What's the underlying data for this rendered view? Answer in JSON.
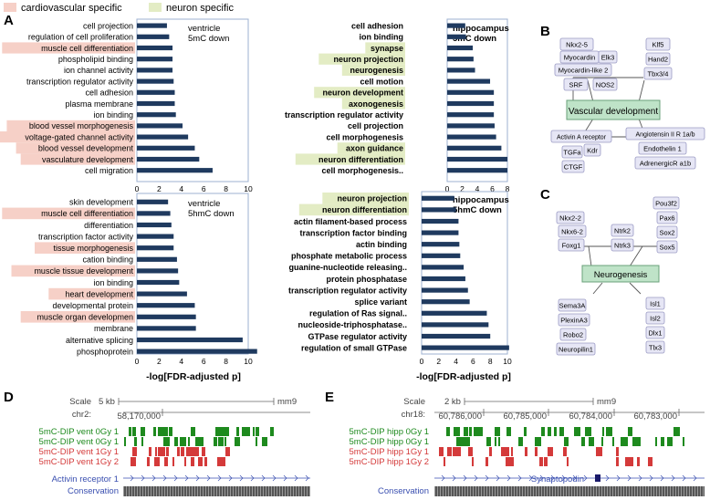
{
  "legend": {
    "cardio": {
      "label": "cardiovascular specific",
      "color": "#f6d0c7"
    },
    "neuron": {
      "label": "neuron specific",
      "color": "#e3ecc4"
    }
  },
  "panel_letters": {
    "A": "A",
    "B": "B",
    "C": "C",
    "D": "D",
    "E": "E"
  },
  "bar_color": "#1f3a5f",
  "chart_data": [
    {
      "type": "bar",
      "orientation": "horizontal",
      "title": "ventricle\n5mC down",
      "categories": [
        "cell projection",
        "regulation of cell proliferation",
        "muscle cell differentiation",
        "phospholipid binding",
        "ion channel activity",
        "transcription regulator activity",
        "cell adhesion",
        "plasma membrane",
        "ion binding",
        "blood vessel morphogenesis",
        "voltage-gated channel activity",
        "blood vessel development",
        "vasculature development",
        "cell migration"
      ],
      "highlight": [
        "none",
        "none",
        "cardio",
        "none",
        "none",
        "none",
        "none",
        "none",
        "none",
        "cardio",
        "cardio",
        "cardio",
        "cardio",
        "none"
      ],
      "values": [
        2.7,
        2.9,
        3.2,
        3.2,
        3.2,
        3.3,
        3.4,
        3.4,
        3.5,
        4.1,
        4.6,
        5.2,
        5.6,
        6.8
      ],
      "xlim": [
        0,
        10
      ],
      "xticks": [
        0,
        2,
        4,
        6,
        8,
        10
      ],
      "xlabel": ""
    },
    {
      "type": "bar",
      "orientation": "horizontal",
      "title": "hippocampus\n5mC down",
      "categories": [
        "cell adhesion",
        "ion binding",
        "synapse",
        "neuron projection",
        "neurogenesis",
        "cell motion",
        "neuron development",
        "axonogenesis",
        "transcription regulator activity",
        "cell projection",
        "cell morphogenesis",
        "axon guidance",
        "neuron differentiation",
        "cell morphogenesis.."
      ],
      "highlight": [
        "none",
        "none",
        "neuron",
        "neuron",
        "neuron",
        "none",
        "neuron",
        "neuron",
        "none",
        "none",
        "none",
        "neuron",
        "neuron",
        "none"
      ],
      "values": [
        2.4,
        2.5,
        3.4,
        3.5,
        3.7,
        5.7,
        6.2,
        6.2,
        6.2,
        6.3,
        6.5,
        7.2,
        8.0,
        8.0
      ],
      "xlim": [
        0,
        8
      ],
      "xticks": [
        0,
        2,
        4,
        6,
        8
      ],
      "xlabel": ""
    },
    {
      "type": "bar",
      "orientation": "horizontal",
      "title": "ventricle\n5hmC down",
      "categories": [
        "skin development",
        "muscle cell differentiation",
        "differentiation",
        "transcription factor activity",
        "tissue morphogenesis",
        "cation binding",
        "muscle tissue development",
        "ion binding",
        "heart development",
        "developmental protein",
        "muscle organ developmen",
        "membrane",
        "alternative splicing",
        "phosphoprotein"
      ],
      "highlight": [
        "none",
        "cardio",
        "none",
        "none",
        "cardio",
        "none",
        "cardio",
        "none",
        "cardio",
        "none",
        "cardio",
        "none",
        "none",
        "none"
      ],
      "values": [
        2.8,
        3.0,
        3.1,
        3.3,
        3.3,
        3.6,
        3.7,
        3.8,
        4.5,
        5.2,
        5.3,
        5.3,
        9.5,
        10.8
      ],
      "xlim": [
        0,
        10
      ],
      "xticks": [
        0,
        2,
        4,
        6,
        8,
        10
      ],
      "xlabel": "-log[FDR-adjusted p]"
    },
    {
      "type": "bar",
      "orientation": "horizontal",
      "title": "hippocampus\n5hmC down",
      "categories": [
        "neuron projection",
        "neuron differentiation",
        "actin filament-based process",
        "transcription factor binding",
        "actin binding",
        "phosphate metabolic process",
        "guanine-nucleotide releasing..",
        "protein phosphatase",
        "transcription regulator activity",
        "splice variant",
        "regulation of Ras signal..",
        "nucleoside-triphosphatase..",
        "GTPase regulator activity",
        "regulation of small GTPase"
      ],
      "highlight": [
        "neuron",
        "neuron",
        "none",
        "none",
        "none",
        "none",
        "none",
        "none",
        "none",
        "none",
        "none",
        "none",
        "none",
        "none"
      ],
      "values": [
        3.8,
        4.0,
        4.3,
        4.3,
        4.4,
        4.5,
        4.9,
        5.1,
        5.4,
        5.6,
        7.6,
        7.8,
        8.0,
        10.2
      ],
      "xlim": [
        0,
        10
      ],
      "xticks": [
        0,
        2,
        4,
        6,
        8,
        10
      ],
      "xlabel": "-log[FDR-adjusted p]"
    }
  ],
  "network_b": {
    "center": "Vascular development",
    "nodes": [
      "Nkx2-5",
      "Myocardin",
      "Elk3",
      "Myocardin-like 2",
      "SRF",
      "NOS2",
      "Klf5",
      "Hand2",
      "Tbx3/4",
      "Activin A receptor",
      "Angiotensin II R 1a/b",
      "Endothelin 1",
      "AdrenergicR a1b",
      "TGFa",
      "Kdr",
      "CTGF"
    ]
  },
  "network_c": {
    "center": "Neurogenesis",
    "nodes": [
      "Nkx2-2",
      "Nkx6-2",
      "Foxg1",
      "Ntrk2",
      "Ntrk3",
      "Pou3f2",
      "Pax6",
      "Sox2",
      "Sox5",
      "Sema3A",
      "PlexinA3",
      "Robo2",
      "Neuropilin1",
      "Isl1",
      "Isl2",
      "Dlx1",
      "Tlx3"
    ]
  },
  "browser_d": {
    "scale_label": "Scale",
    "scale_value": "5 kb",
    "genome": "mm9",
    "chr": "chr2:",
    "coord": "58,170,000",
    "tracks": [
      "5mC-DIP vent 0Gy 1",
      "5mC-DIP vent 0Gy 1",
      "5mC-DIP vent 1Gy 1",
      "5mC-DIP vent 1Gy 2"
    ],
    "track_colors": [
      "#1e8a1e",
      "#1e8a1e",
      "#d43a3a",
      "#d43a3a"
    ],
    "gene": "Activin receptor 1",
    "conservation": "Conservation"
  },
  "browser_e": {
    "scale_label": "Scale",
    "scale_value": "2 kb",
    "genome": "mm9",
    "chr": "chr18:",
    "coords": [
      "60,786,000",
      "60,785,000",
      "60,784,000",
      "60,783,000"
    ],
    "tracks": [
      "5mC-DIP hipp 0Gy 1",
      "5mC-DIP hipp 0Gy 1",
      "5mC-DIP hipp 1Gy 1",
      "5mC-DIP hipp 1Gy 2"
    ],
    "track_colors": [
      "#1e8a1e",
      "#1e8a1e",
      "#d43a3a",
      "#d43a3a"
    ],
    "gene": "Synaptopodin",
    "conservation": "Conservation"
  }
}
